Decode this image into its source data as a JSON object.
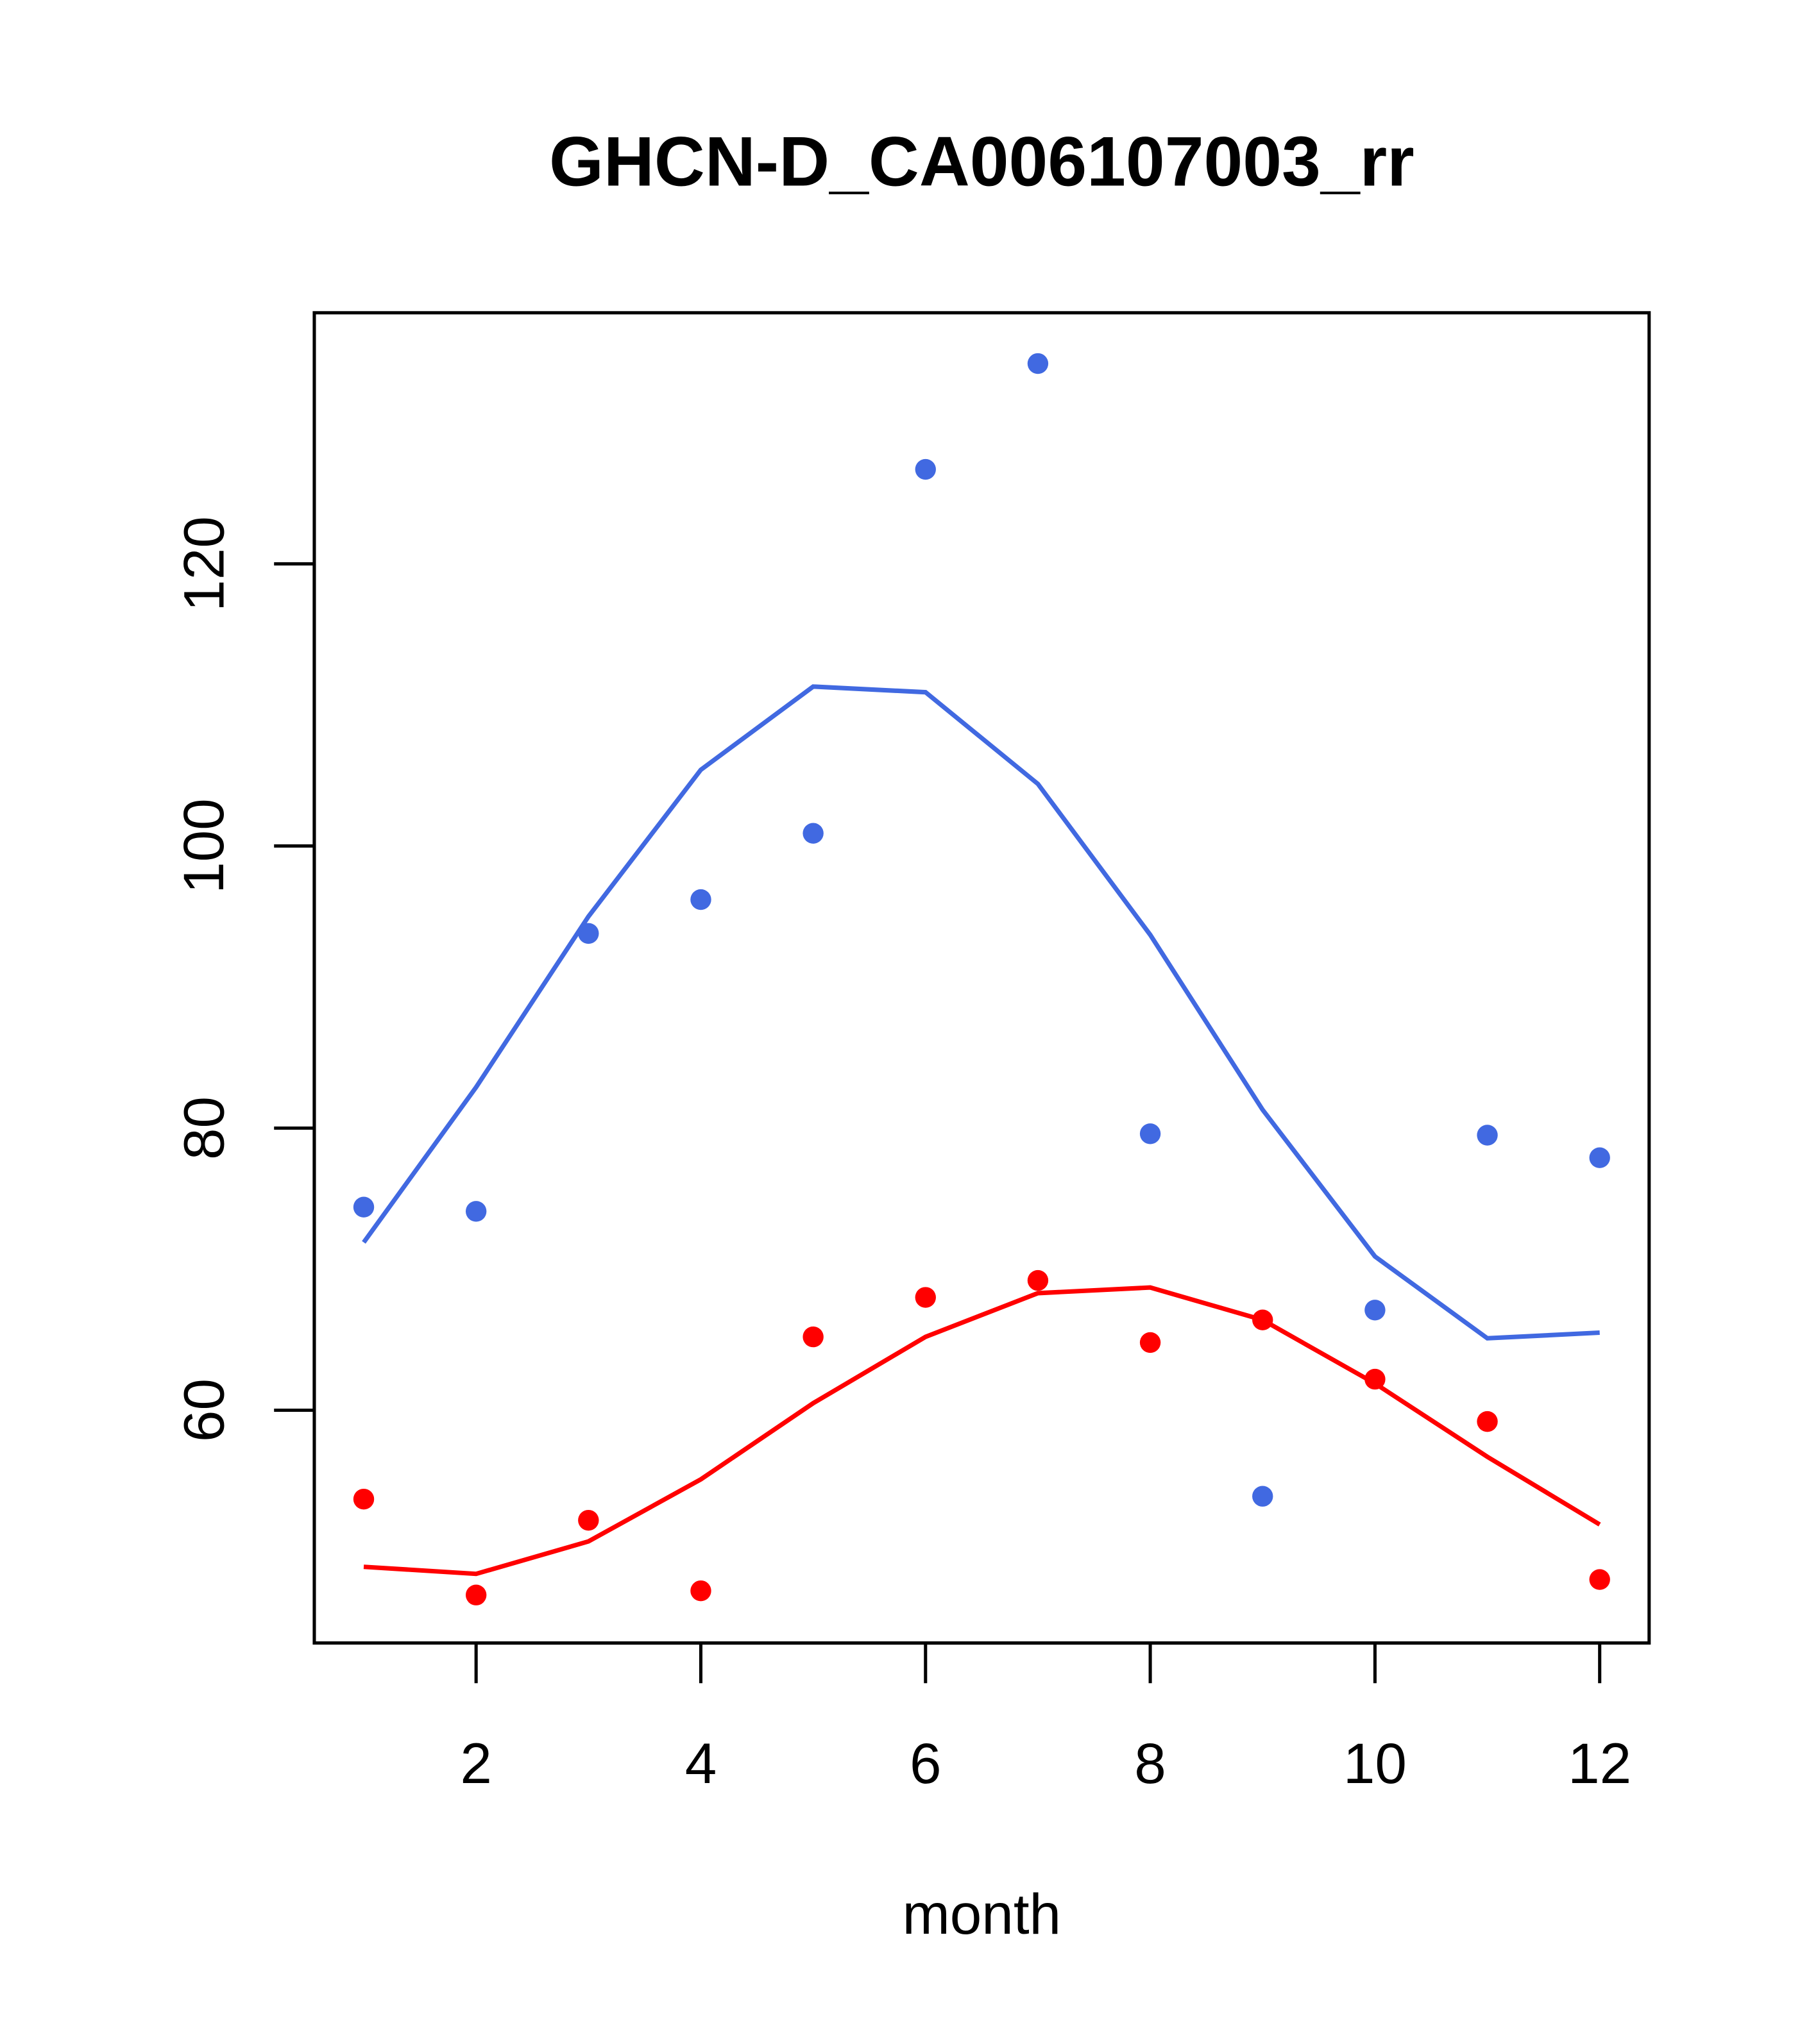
{
  "chart_data": {
    "type": "scatter",
    "title": "GHCN-D_CA006107003_rr",
    "xlabel": "month",
    "ylabel": "",
    "xlim": [
      0.56,
      12.44
    ],
    "ylim": [
      43.5,
      137.8
    ],
    "x_ticks": [
      2,
      4,
      6,
      8,
      10,
      12
    ],
    "y_ticks": [
      60,
      80,
      100,
      120
    ],
    "grid": false,
    "x": [
      1,
      2,
      3,
      4,
      5,
      6,
      7,
      8,
      9,
      10,
      11,
      12
    ],
    "series": [
      {
        "name": "blue points",
        "kind": "points",
        "color": "#4169E1",
        "values": [
          74.4,
          74.1,
          93.8,
          96.2,
          100.9,
          126.7,
          134.2,
          79.6,
          53.9,
          67.1,
          79.5,
          77.9
        ]
      },
      {
        "name": "blue line",
        "kind": "line",
        "color": "#4169E1",
        "values": [
          71.9,
          82.9,
          95.0,
          105.4,
          111.3,
          110.9,
          104.4,
          93.7,
          81.3,
          70.9,
          65.1,
          65.5
        ]
      },
      {
        "name": "red points",
        "kind": "points",
        "color": "#FF0000",
        "values": [
          53.7,
          46.9,
          52.2,
          47.2,
          65.2,
          68.0,
          69.2,
          64.8,
          66.4,
          62.2,
          59.2,
          48.0
        ]
      },
      {
        "name": "red line",
        "kind": "line",
        "color": "#FF0000",
        "values": [
          48.9,
          48.4,
          50.7,
          55.1,
          60.5,
          65.2,
          68.3,
          68.7,
          66.4,
          61.9,
          56.7,
          51.9
        ]
      }
    ]
  }
}
